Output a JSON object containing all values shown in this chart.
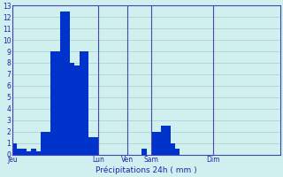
{
  "xlabel": "Précipitations 24h ( mm )",
  "bar_color": "#0033cc",
  "background_color": "#d0f0f0",
  "grid_color": "#b0c8c8",
  "text_color": "#2222aa",
  "axis_color": "#4444aa",
  "ylim": [
    0,
    13
  ],
  "yticks": [
    0,
    1,
    2,
    3,
    4,
    5,
    6,
    7,
    8,
    9,
    10,
    11,
    12,
    13
  ],
  "xlim": [
    0,
    56
  ],
  "bar_values": [
    1,
    0.5,
    0.5,
    0.3,
    0.5,
    0.3,
    2,
    2,
    9,
    9,
    12.5,
    12.5,
    8,
    7.8,
    9,
    9,
    1.5,
    1.5,
    0,
    0,
    0,
    0,
    0,
    0,
    0,
    0,
    0,
    0.5,
    0,
    2,
    2,
    2.5,
    2.5,
    1,
    0.5,
    0,
    0,
    0,
    0,
    0,
    0,
    0,
    0,
    0,
    0,
    0,
    0,
    0,
    0,
    0,
    0,
    0,
    0,
    0,
    0,
    0
  ],
  "day_labels": [
    "Jeu",
    "Lun",
    "Ven",
    "Sam",
    "Dim"
  ],
  "day_tick_positions": [
    0,
    18,
    24,
    29,
    42
  ],
  "day_vline_positions": [
    0,
    18,
    24,
    29,
    42
  ]
}
